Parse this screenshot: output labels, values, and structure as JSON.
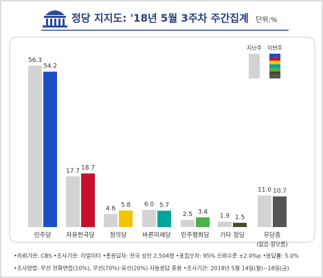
{
  "chart_data": {
    "type": "bar",
    "title": "정당 지지도: '18년 5월 3주차 주간집계",
    "subtitle": "단위:%",
    "categories": [
      "민주당",
      "자유한국당",
      "정의당",
      "바른미래당",
      "민주평화당",
      "기타 정당",
      "무당층"
    ],
    "annotations": [
      "(없음·잘모름)"
    ],
    "series": [
      {
        "name": "지난주",
        "color": "#d3d3d3",
        "values": [
          56.3,
          17.7,
          4.6,
          6.0,
          2.5,
          1.9,
          11.0
        ],
        "value_labels": [
          "56.3",
          "17.7",
          "4.6",
          "6.0",
          "2.5",
          "1.9",
          "11.0"
        ]
      },
      {
        "name": "이번주",
        "colors": [
          "#1d4fc4",
          "#c8102e",
          "#f2c500",
          "#00a59c",
          "#4caf50",
          "#4a4a2a",
          "#555555"
        ],
        "values": [
          54.2,
          18.7,
          5.8,
          5.7,
          3.4,
          1.5,
          10.7
        ]
      }
    ],
    "ylim": [
      0,
      60
    ],
    "notes": [
      "•의뢰기관: CBS •조사기관: 리얼미터 •총응답자: 전국 성인 2,504명 •표집오차: 95% 신뢰수준 ±2.0%p •응답률: 5.0%",
      "•조사방법: 무선 전화면접(10%), 무선(70%)·유선(20%) 자동응답 혼용 •조사기간: 2018년 5월 14일(월)~18일(금)"
    ]
  }
}
